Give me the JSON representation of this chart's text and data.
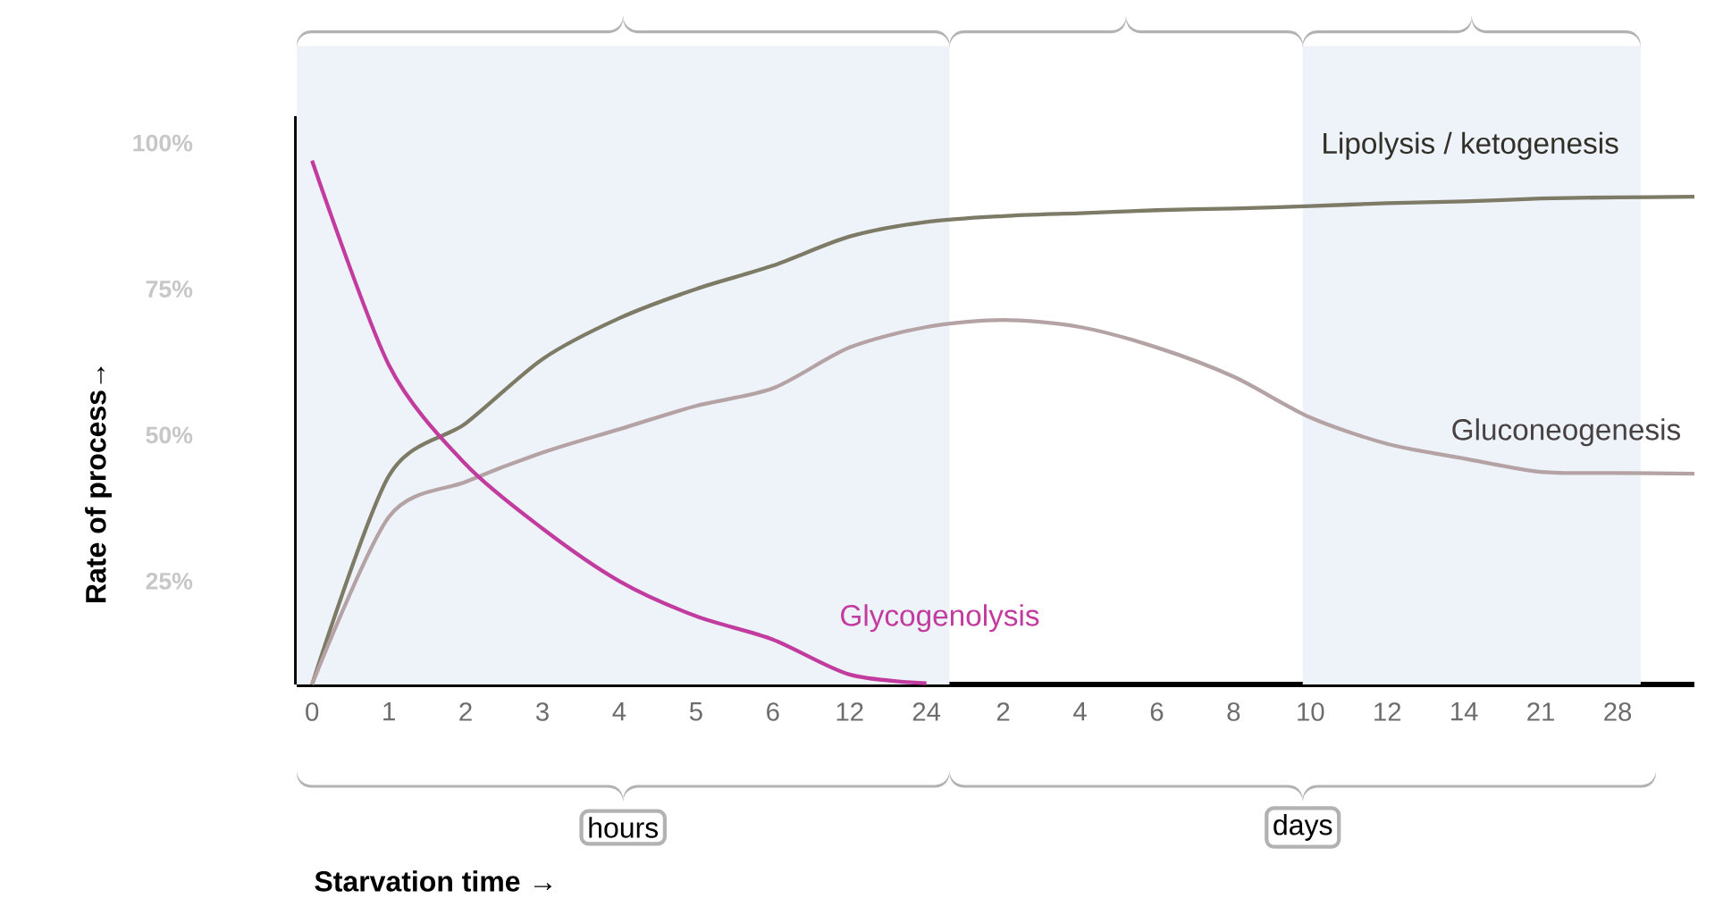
{
  "chart_data": {
    "type": "line",
    "ylabel": "Rate of process→",
    "categories": [
      "0",
      "1",
      "2",
      "3",
      "4",
      "5",
      "6",
      "12",
      "24",
      "2",
      "4",
      "6",
      "8",
      "10",
      "12",
      "14",
      "21",
      "28",
      null
    ],
    "ylim": [
      7.3,
      104.6
    ],
    "yticks": [
      {
        "value": 25,
        "label": "25%"
      },
      {
        "value": 50,
        "label": "50%"
      },
      {
        "value": 75,
        "label": "75%"
      },
      {
        "value": 100,
        "label": "100%"
      }
    ],
    "bands": [
      {
        "axis": "x",
        "from": "0",
        "to": "24",
        "color": "#eef2f9"
      },
      {
        "axis": "x",
        "from": "10",
        "to": "28",
        "color": "#eef2f9"
      }
    ],
    "series": [
      {
        "name": "Lipolysis / ketogenesis",
        "color": "#7d7b66",
        "values": [
          7.3,
          43,
          52,
          63,
          70,
          75,
          79,
          84,
          86.5,
          87.5,
          88,
          88.5,
          88.8,
          89.2,
          89.7,
          90,
          90.5,
          90.7,
          90.8
        ]
      },
      {
        "name": "Gluconeogenesis",
        "color": "#b4a2a4",
        "values": [
          7.3,
          36,
          42,
          47,
          51,
          55,
          58,
          65,
          68.5,
          69.7,
          68.5,
          65,
          60,
          53,
          48.5,
          46,
          43.7,
          43.5,
          43.4
        ]
      },
      {
        "name": "Glycogenolysis",
        "color": "#c23b9e",
        "values": [
          97,
          62,
          45,
          34,
          25,
          19,
          15,
          9,
          7.5,
          null,
          null,
          null,
          null,
          null,
          null,
          null,
          null,
          null,
          null
        ]
      }
    ],
    "annotations": [
      "hours",
      "days",
      "Starvation time →"
    ]
  }
}
